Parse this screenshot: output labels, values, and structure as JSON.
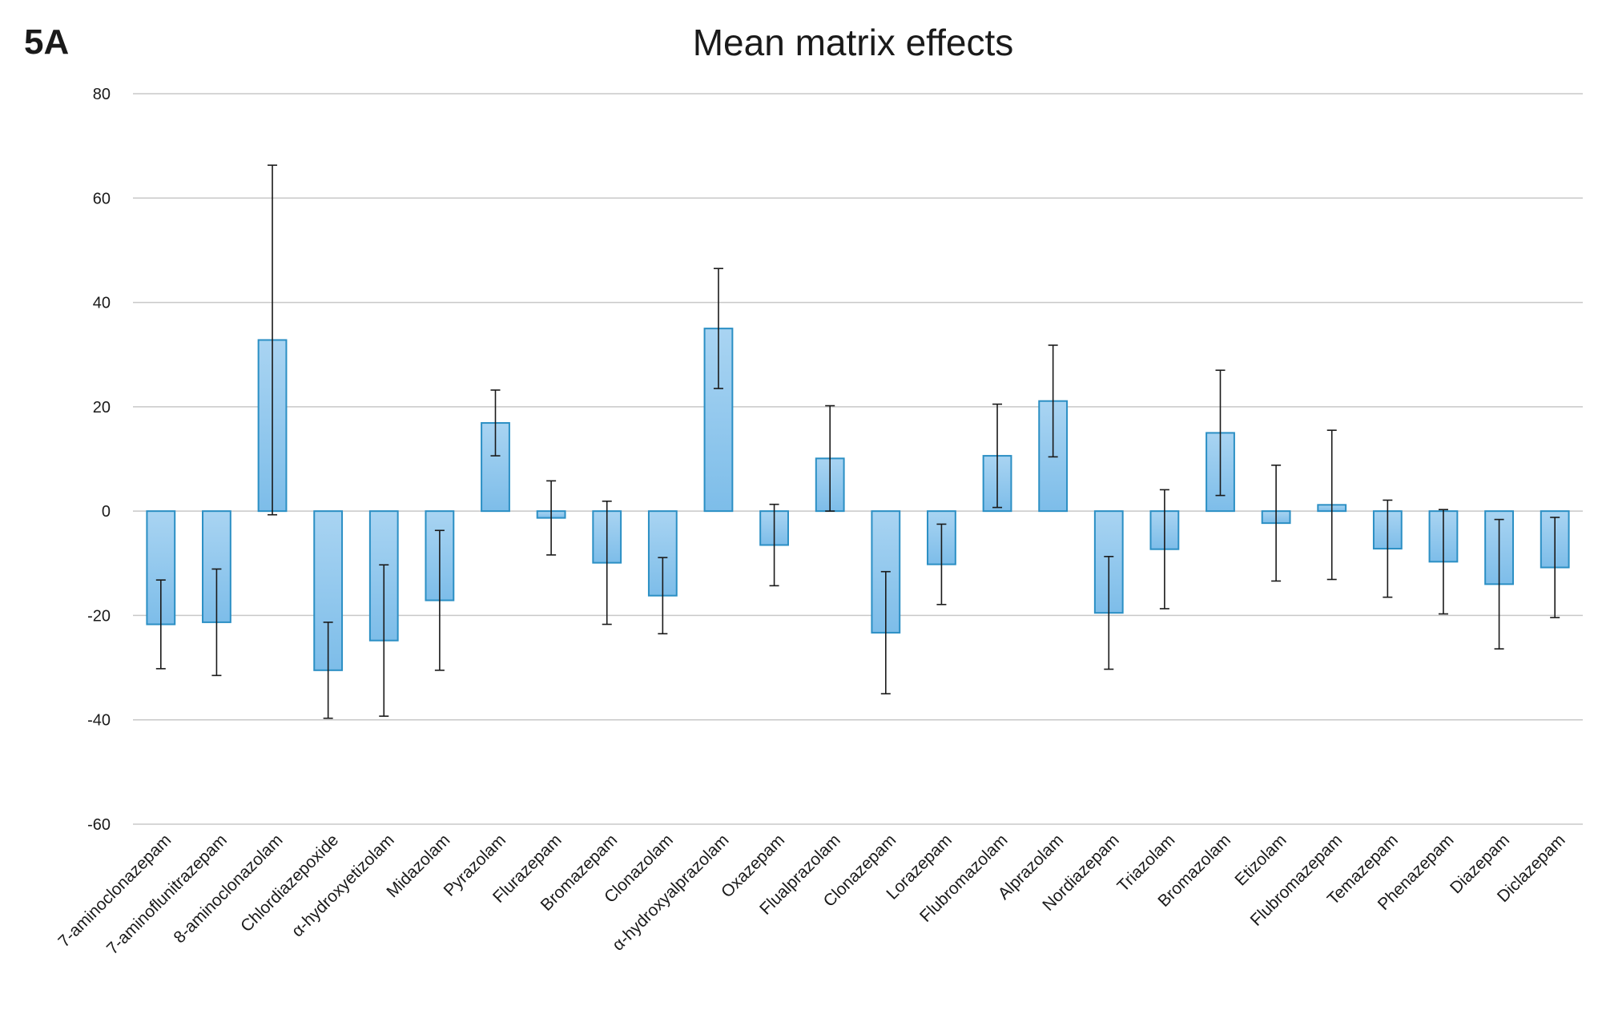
{
  "panel_label": "5A",
  "chart_data": {
    "type": "bar",
    "title": "Mean matrix effects",
    "xlabel": "",
    "ylabel": "",
    "ylim": [
      -60,
      80
    ],
    "yticks": [
      80,
      60,
      40,
      20,
      0,
      -20,
      -40,
      -60
    ],
    "grid": true,
    "legend": "none",
    "colors": {
      "bar_fill_top": "#a9d4f2",
      "bar_fill_bottom": "#7dbde9",
      "bar_stroke": "#2b8fc4",
      "grid": "#c8c8c8",
      "error": "#1a1a1a"
    },
    "categories": [
      "7-aminoclonazepam",
      "7-aminoflunitrazepam",
      "8-aminoclonazolam",
      "Chlordiazepoxide",
      "α-hydroxyetizolam",
      "Midazolam",
      "Pyrazolam",
      "Flurazepam",
      "Bromazepam",
      "Clonazolam",
      "α-hydroxyalprazolam",
      "Oxazepam",
      "Flualprazolam",
      "Clonazepam",
      "Lorazepam",
      "Flubromazolam",
      "Alprazolam",
      "Nordiazepam",
      "Triazolam",
      "Bromazolam",
      "Etizolam",
      "Flubromazepam",
      "Temazepam",
      "Phenazepam",
      "Diazepam",
      "Diclazepam"
    ],
    "values": [
      -21.7,
      -21.3,
      32.8,
      -30.5,
      -24.8,
      -17.1,
      16.9,
      -1.3,
      -9.9,
      -16.2,
      35.0,
      -6.5,
      10.1,
      -23.3,
      -10.2,
      10.6,
      21.1,
      -19.5,
      -7.3,
      15.0,
      -2.3,
      1.2,
      -7.2,
      -9.7,
      -14.0,
      -10.8
    ],
    "errors": [
      8.5,
      10.2,
      33.5,
      9.2,
      14.5,
      13.4,
      6.3,
      7.1,
      11.8,
      7.3,
      11.5,
      7.8,
      10.1,
      11.7,
      7.7,
      9.9,
      10.7,
      10.8,
      11.4,
      12.0,
      11.1,
      14.3,
      9.3,
      10.0,
      12.4,
      9.6
    ]
  }
}
